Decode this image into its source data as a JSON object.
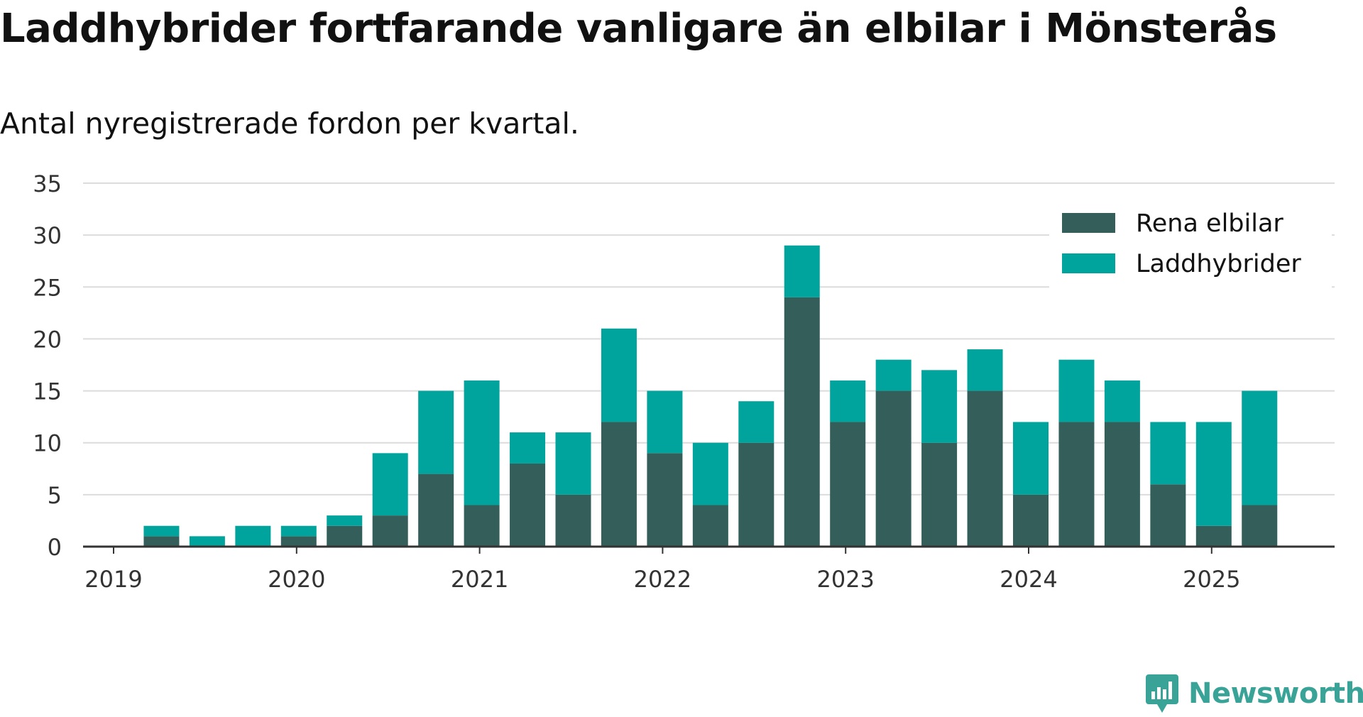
{
  "chart_data": {
    "type": "bar",
    "stacked": true,
    "title": "Laddhybrider fortfarande vanligare än elbilar i Mönsterås",
    "subtitle": "Antal nyregistrerade fordon per kvartal.",
    "categories": [
      "2019 Q2",
      "2019 Q3",
      "2019 Q4",
      "2020 Q1",
      "2020 Q2",
      "2020 Q3",
      "2020 Q4",
      "2021 Q1",
      "2021 Q2",
      "2021 Q3",
      "2021 Q4",
      "2022 Q1",
      "2022 Q2",
      "2022 Q3",
      "2022 Q4",
      "2023 Q1",
      "2023 Q2",
      "2023 Q3",
      "2023 Q4",
      "2024 Q1",
      "2024 Q2",
      "2024 Q3",
      "2024 Q4",
      "2025 Q1",
      "2025 Q2"
    ],
    "series": [
      {
        "name": "Rena elbilar",
        "color": "#335e5a",
        "values": [
          1,
          0,
          0,
          1,
          2,
          3,
          7,
          4,
          8,
          5,
          12,
          9,
          4,
          10,
          24,
          12,
          15,
          10,
          15,
          5,
          12,
          12,
          6,
          2,
          4
        ]
      },
      {
        "name": "Laddhybrider",
        "color": "#00a49c",
        "values": [
          1,
          1,
          2,
          1,
          1,
          6,
          8,
          12,
          3,
          6,
          9,
          6,
          6,
          4,
          5,
          4,
          3,
          7,
          4,
          7,
          6,
          4,
          6,
          10,
          11
        ]
      }
    ],
    "x_tick_labels": [
      "2019",
      "2020",
      "2021",
      "2022",
      "2023",
      "2024",
      "2025"
    ],
    "y_tick_labels": [
      "0",
      "5",
      "10",
      "15",
      "20",
      "25",
      "30",
      "35"
    ],
    "ylim": [
      0,
      35
    ],
    "grid": true,
    "legend_position": "top-right"
  },
  "branding": {
    "name": "Newsworthy",
    "logo_icon": "newsworthy-chart-bubble-icon",
    "color": "#3aa398"
  }
}
